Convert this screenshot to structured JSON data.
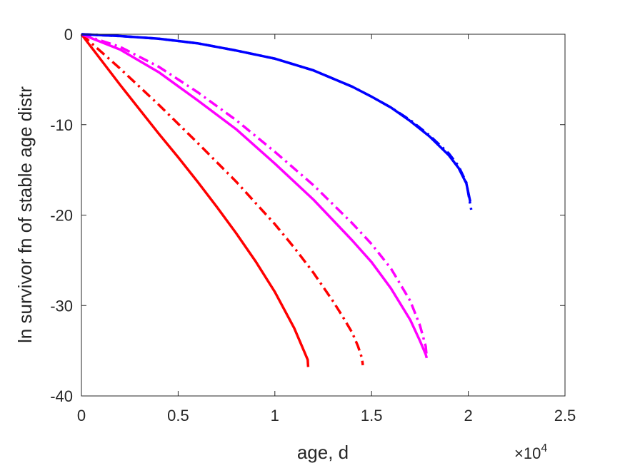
{
  "chart_data": {
    "type": "line",
    "title": "",
    "xlabel": "age, d",
    "ylabel": "ln survivor fn of stable age distr",
    "x_exponent_label": "×10",
    "x_exponent_power": "4",
    "xlim": [
      0,
      25000
    ],
    "ylim": [
      -40,
      0
    ],
    "x_ticks": [
      0,
      5000,
      10000,
      15000,
      20000,
      25000
    ],
    "x_tick_labels": [
      "0",
      "0.5",
      "1",
      "1.5",
      "2",
      "2.5"
    ],
    "y_ticks": [
      0,
      -10,
      -20,
      -30,
      -40
    ],
    "y_tick_labels": [
      "0",
      "-10",
      "-20",
      "-30",
      "-40"
    ],
    "grid": false,
    "series": [
      {
        "color": "#ff0000",
        "style": "solid",
        "x": [
          0,
          1000,
          2000,
          3000,
          4000,
          5000,
          6000,
          7000,
          8000,
          9000,
          10000,
          11000,
          11500,
          11700,
          11720
        ],
        "y": [
          0,
          -2.8,
          -5.6,
          -8.3,
          -11.0,
          -13.6,
          -16.3,
          -19.1,
          -22.0,
          -25.1,
          -28.5,
          -32.5,
          -35.0,
          -36.0,
          -36.8
        ]
      },
      {
        "color": "#ff0000",
        "style": "dashdot",
        "x": [
          0,
          2000,
          4000,
          6000,
          8000,
          10000,
          11000,
          12000,
          13000,
          13500,
          14000,
          14300,
          14500,
          14550
        ],
        "y": [
          0,
          -3.8,
          -7.8,
          -12.0,
          -16.3,
          -21.0,
          -23.6,
          -26.4,
          -29.5,
          -31.2,
          -33.0,
          -34.5,
          -35.8,
          -36.6
        ]
      },
      {
        "color": "#ff00ff",
        "style": "solid",
        "x": [
          0,
          2000,
          4000,
          6000,
          8000,
          10000,
          12000,
          14000,
          15000,
          16000,
          17000,
          17500,
          17800,
          17850
        ],
        "y": [
          0,
          -1.7,
          -4.2,
          -7.3,
          -10.5,
          -14.3,
          -18.3,
          -22.8,
          -25.2,
          -28.1,
          -31.6,
          -33.9,
          -35.4,
          -35.8
        ]
      },
      {
        "color": "#ff00ff",
        "style": "dashdot",
        "x": [
          0,
          2000,
          4000,
          6000,
          8000,
          10000,
          12000,
          14000,
          15000,
          16000,
          17000,
          17500,
          17800,
          17850
        ],
        "y": [
          0,
          -1.4,
          -3.6,
          -6.4,
          -9.5,
          -13.0,
          -16.7,
          -20.9,
          -23.2,
          -25.9,
          -29.5,
          -32.2,
          -34.5,
          -35.7
        ]
      },
      {
        "color": "#0000ff",
        "style": "solid",
        "x": [
          0,
          2000,
          4000,
          6000,
          8000,
          10000,
          12000,
          14000,
          15000,
          16000,
          17000,
          18000,
          19000,
          19500,
          19900,
          20100
        ],
        "y": [
          0,
          -0.2,
          -0.5,
          -1.0,
          -1.8,
          -2.7,
          -4.0,
          -5.8,
          -6.9,
          -8.1,
          -9.6,
          -11.3,
          -13.4,
          -14.8,
          -16.5,
          -18.5
        ]
      },
      {
        "color": "#0000ff",
        "style": "dashdot",
        "x": [
          0,
          2000,
          4000,
          6000,
          8000,
          10000,
          12000,
          14000,
          15000,
          16000,
          17000,
          18000,
          19000,
          19500,
          19900,
          20150
        ],
        "y": [
          0,
          -0.2,
          -0.5,
          -1.0,
          -1.8,
          -2.7,
          -4.0,
          -5.8,
          -6.9,
          -8.1,
          -9.5,
          -11.2,
          -13.2,
          -14.6,
          -16.4,
          -19.4
        ]
      }
    ]
  }
}
